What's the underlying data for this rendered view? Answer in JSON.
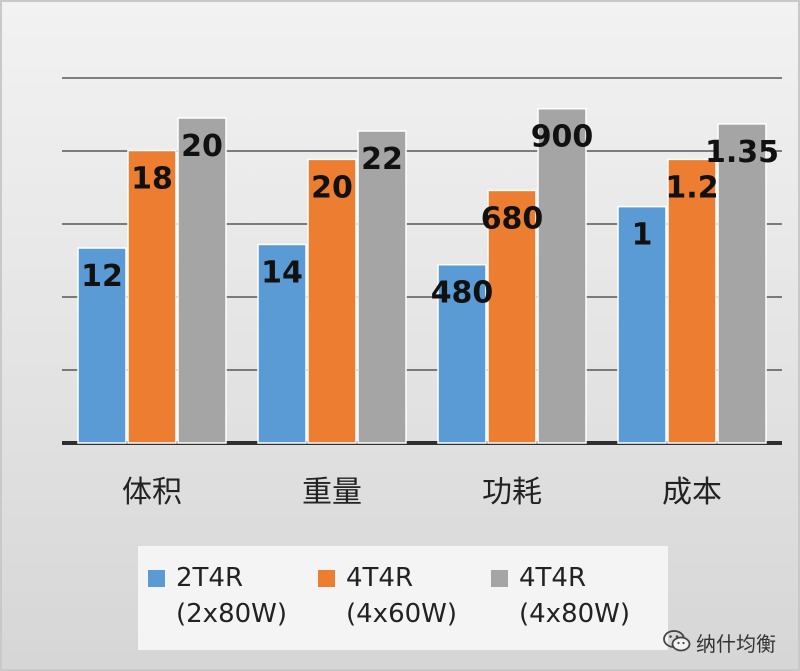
{
  "chart_data": {
    "type": "bar",
    "categories": [
      "体积",
      "重量",
      "功耗",
      "成本"
    ],
    "series": [
      {
        "name": "2T4R (2x80W)",
        "name_lines": [
          "2T4R",
          "(2x80W)"
        ],
        "color": "#5b9bd5",
        "values": [
          12,
          14,
          480,
          1
        ]
      },
      {
        "name": "4T4R (4x60W)",
        "name_lines": [
          "4T4R",
          "(4x60W)"
        ],
        "color": "#ed7d31",
        "values": [
          18,
          20,
          680,
          1.2
        ]
      },
      {
        "name": "4T4R (4x80W)",
        "name_lines": [
          "4T4R",
          "(4x80W)"
        ],
        "color": "#a5a5a5",
        "values": [
          20,
          22,
          900,
          1.35
        ]
      }
    ],
    "group_max": [
      24,
      27.5,
      1050,
      1.65
    ],
    "gridlines": true,
    "legend_position": "bottom"
  },
  "watermark": {
    "text": "纳什均衡",
    "icon": "wechat-icon"
  }
}
